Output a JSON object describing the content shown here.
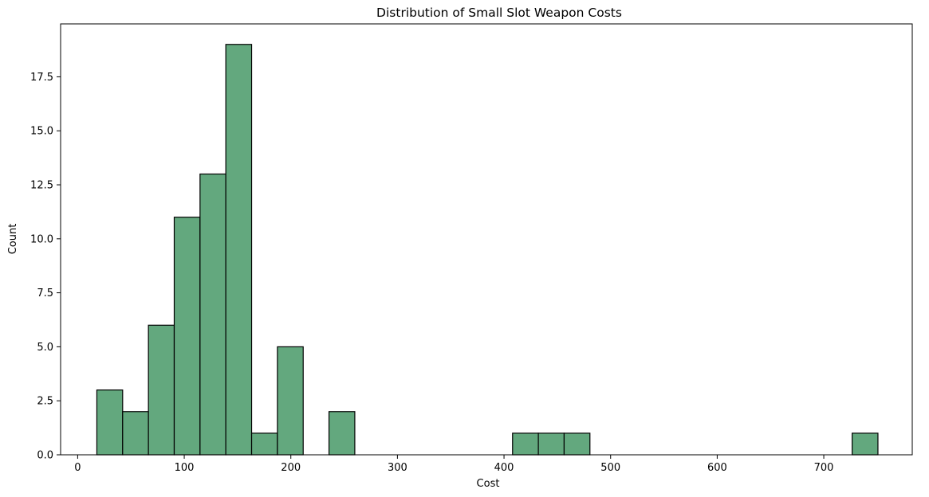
{
  "chart_data": {
    "type": "bar",
    "title": "Distribution of Small Slot Weapon Costs",
    "xlabel": "Cost",
    "ylabel": "Count",
    "xlim": [
      -16,
      783
    ],
    "ylim": [
      0,
      19.95
    ],
    "xticks": [
      0,
      100,
      200,
      300,
      400,
      500,
      600,
      700
    ],
    "yticks": [
      0.0,
      2.5,
      5.0,
      7.5,
      10.0,
      12.5,
      15.0,
      17.5
    ],
    "ytick_labels": [
      "0.0",
      "2.5",
      "5.0",
      "7.5",
      "10.0",
      "12.5",
      "15.0",
      "17.5"
    ],
    "bin_width": 24.2,
    "bins": [
      {
        "x0": 18.0,
        "count": 3
      },
      {
        "x0": 42.2,
        "count": 2
      },
      {
        "x0": 66.4,
        "count": 6
      },
      {
        "x0": 90.6,
        "count": 11
      },
      {
        "x0": 114.8,
        "count": 13
      },
      {
        "x0": 139.0,
        "count": 19
      },
      {
        "x0": 163.2,
        "count": 1
      },
      {
        "x0": 187.4,
        "count": 5
      },
      {
        "x0": 235.8,
        "count": 2
      },
      {
        "x0": 408.0,
        "count": 1
      },
      {
        "x0": 432.2,
        "count": 1
      },
      {
        "x0": 456.4,
        "count": 1
      },
      {
        "x0": 726.6,
        "count": 1
      }
    ],
    "bar_color": "#63a87e",
    "edge_color": "#000000",
    "grid": false,
    "legend": "none"
  }
}
